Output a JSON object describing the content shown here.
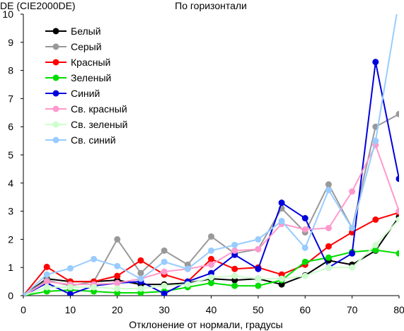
{
  "chart_data": {
    "type": "line",
    "title": "По горизонтали",
    "ylabel": "DE (CIE2000DE)",
    "xlabel": "Отклонение от нормали, градусы",
    "x": [
      0,
      5,
      10,
      15,
      20,
      25,
      30,
      35,
      40,
      45,
      50,
      55,
      60,
      65,
      70,
      75,
      80
    ],
    "xlim": [
      0,
      80
    ],
    "ylim": [
      0,
      10
    ],
    "xticks": [
      0,
      10,
      20,
      30,
      40,
      50,
      60,
      70,
      80
    ],
    "yticks": [
      0,
      1,
      2,
      3,
      4,
      5,
      6,
      7,
      8,
      9,
      10
    ],
    "grid": false,
    "legend_position": "top-left",
    "series": [
      {
        "name": "Белый",
        "color": "#000000",
        "values": [
          0,
          0.6,
          0.5,
          0.5,
          0.55,
          0.4,
          0.4,
          0.45,
          0.6,
          0.55,
          0.6,
          0.4,
          0.72,
          1.25,
          1.1,
          1.6,
          2.8
        ]
      },
      {
        "name": "Серый",
        "color": "#999999",
        "values": [
          0,
          0.55,
          0.35,
          0.5,
          2.0,
          0.8,
          1.6,
          1.1,
          2.1,
          1.5,
          1.65,
          3.1,
          2.25,
          3.95,
          2.4,
          6.0,
          6.45
        ]
      },
      {
        "name": "Красный",
        "color": "#ff0000",
        "values": [
          0,
          1.02,
          0.5,
          0.5,
          0.7,
          1.25,
          0.75,
          0.5,
          1.3,
          0.95,
          1.0,
          0.75,
          1.1,
          1.75,
          2.25,
          2.7,
          2.95
        ]
      },
      {
        "name": "Зеленый",
        "color": "#00dd00",
        "values": [
          0,
          0.15,
          0.2,
          0.15,
          0.1,
          0.1,
          0.15,
          0.3,
          0.45,
          0.35,
          0.35,
          0.55,
          1.2,
          1.35,
          1.55,
          1.62,
          1.5
        ]
      },
      {
        "name": "Синий",
        "color": "#0000dd",
        "values": [
          0,
          0.45,
          0.05,
          0.35,
          0.45,
          0.5,
          0.07,
          0.5,
          0.8,
          1.45,
          0.95,
          3.3,
          2.75,
          1.0,
          1.5,
          8.3,
          4.15
        ]
      },
      {
        "name": "Св. красный",
        "color": "#ff99cc",
        "values": [
          0,
          0.5,
          0.4,
          0.4,
          0.45,
          0.6,
          0.85,
          0.95,
          1.1,
          1.6,
          1.65,
          2.55,
          2.35,
          2.4,
          3.7,
          5.35,
          3.0
        ]
      },
      {
        "name": "Св. зеленый",
        "color": "#ccffcc",
        "values": [
          0,
          0.3,
          0.3,
          0.3,
          0.25,
          0.25,
          0.35,
          0.4,
          0.65,
          0.7,
          0.6,
          0.6,
          0.7,
          1.0,
          1.0,
          1.8,
          2.7
        ]
      },
      {
        "name": "Св. синий",
        "color": "#99ccff",
        "values": [
          0,
          0.75,
          0.97,
          1.3,
          1.05,
          0.6,
          1.2,
          0.95,
          1.6,
          1.8,
          2.0,
          2.65,
          1.7,
          3.75,
          2.4,
          5.5,
          10.5
        ]
      }
    ]
  }
}
